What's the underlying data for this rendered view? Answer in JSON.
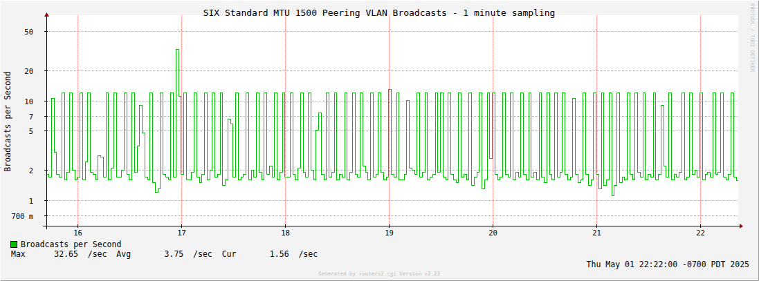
{
  "chart_data": {
    "type": "line",
    "title": "SIX Standard MTU 1500 Peering VLAN Broadcasts - 1 minute sampling",
    "y_label": "Broadcasts per Second",
    "x": [
      15.7,
      15.725,
      15.75,
      15.775,
      15.8,
      15.825,
      15.85,
      15.875,
      15.9,
      15.925,
      15.95,
      15.975,
      16,
      16.025,
      16.05,
      16.075,
      16.1,
      16.125,
      16.15,
      16.175,
      16.2,
      16.225,
      16.25,
      16.275,
      16.3,
      16.325,
      16.35,
      16.375,
      16.4,
      16.425,
      16.45,
      16.475,
      16.5,
      16.525,
      16.55,
      16.575,
      16.6,
      16.625,
      16.65,
      16.675,
      16.7,
      16.725,
      16.75,
      16.775,
      16.8,
      16.825,
      16.85,
      16.875,
      16.9,
      16.925,
      16.95,
      16.975,
      17,
      17.025,
      17.05,
      17.075,
      17.1,
      17.125,
      17.15,
      17.175,
      17.2,
      17.225,
      17.25,
      17.275,
      17.3,
      17.325,
      17.35,
      17.375,
      17.4,
      17.425,
      17.45,
      17.475,
      17.5,
      17.525,
      17.55,
      17.575,
      17.6,
      17.625,
      17.65,
      17.675,
      17.7,
      17.725,
      17.75,
      17.775,
      17.8,
      17.825,
      17.85,
      17.875,
      17.9,
      17.925,
      17.95,
      17.975,
      18,
      18.025,
      18.05,
      18.075,
      18.1,
      18.125,
      18.15,
      18.175,
      18.2,
      18.225,
      18.25,
      18.275,
      18.3,
      18.325,
      18.35,
      18.375,
      18.4,
      18.425,
      18.45,
      18.475,
      18.5,
      18.525,
      18.55,
      18.575,
      18.6,
      18.625,
      18.65,
      18.675,
      18.7,
      18.725,
      18.75,
      18.775,
      18.8,
      18.825,
      18.85,
      18.875,
      18.9,
      18.925,
      18.95,
      18.975,
      19,
      19.025,
      19.05,
      19.075,
      19.1,
      19.125,
      19.15,
      19.175,
      19.2,
      19.225,
      19.25,
      19.275,
      19.3,
      19.325,
      19.35,
      19.375,
      19.4,
      19.425,
      19.45,
      19.475,
      19.5,
      19.525,
      19.55,
      19.575,
      19.6,
      19.625,
      19.65,
      19.675,
      19.7,
      19.725,
      19.75,
      19.775,
      19.8,
      19.825,
      19.85,
      19.875,
      19.9,
      19.925,
      19.95,
      19.975,
      20,
      20.025,
      20.05,
      20.075,
      20.1,
      20.125,
      20.15,
      20.175,
      20.2,
      20.225,
      20.25,
      20.275,
      20.3,
      20.325,
      20.35,
      20.375,
      20.4,
      20.425,
      20.45,
      20.475,
      20.5,
      20.525,
      20.55,
      20.575,
      20.6,
      20.625,
      20.65,
      20.675,
      20.7,
      20.725,
      20.75,
      20.775,
      20.8,
      20.825,
      20.85,
      20.875,
      20.9,
      20.925,
      20.95,
      20.975,
      21,
      21.025,
      21.05,
      21.075,
      21.1,
      21.125,
      21.15,
      21.175,
      21.2,
      21.225,
      21.25,
      21.275,
      21.3,
      21.325,
      21.35,
      21.375,
      21.4,
      21.425,
      21.45,
      21.475,
      21.5,
      21.525,
      21.55,
      21.575,
      21.6,
      21.625,
      21.65,
      21.675,
      21.7,
      21.725,
      21.75,
      21.775,
      21.8,
      21.825,
      21.85,
      21.875,
      21.9,
      21.925,
      21.95,
      21.975,
      22,
      22.025,
      22.05,
      22.075,
      22.1,
      22.125,
      22.15,
      22.175,
      22.2,
      22.225,
      22.25,
      22.275,
      22.3,
      22.325,
      22.35
    ],
    "series": [
      {
        "name": "Broadcasts per Second",
        "color": "#00c000",
        "line_style": "step",
        "values": [
          1.8,
          1.7,
          10.5,
          3,
          1.8,
          1.7,
          12,
          1.6,
          1.9,
          12,
          2,
          1.6,
          1.7,
          12,
          1.6,
          2.4,
          12,
          1.9,
          1.8,
          1.6,
          2.8,
          2.7,
          1.7,
          12,
          1.6,
          2.1,
          12,
          1.7,
          1.7,
          2,
          12,
          1.8,
          1.6,
          12,
          1.9,
          3.5,
          9,
          4.7,
          1.7,
          1.6,
          12,
          1.5,
          1.2,
          1.3,
          12,
          1.8,
          1.7,
          1.6,
          12,
          1.7,
          32.65,
          11,
          1.8,
          12,
          1.6,
          1.6,
          1.9,
          12,
          1.7,
          1.5,
          1.8,
          12,
          1.6,
          2,
          12,
          1.7,
          1.8,
          12,
          1.4,
          1.6,
          6.5,
          5.8,
          1.7,
          12,
          1.6,
          1.7,
          1.8,
          12,
          1.6,
          2,
          1.7,
          12,
          1.9,
          1.6,
          12,
          1.8,
          2.2,
          1.7,
          12,
          1.6,
          1.9,
          12,
          1.7,
          1.7,
          12,
          1.8,
          1.6,
          2.1,
          12,
          1.9,
          1.7,
          12,
          2,
          1.6,
          5,
          7.5,
          1.8,
          1.6,
          12,
          1.7,
          1.9,
          12,
          1.6,
          1.8,
          1.7,
          12,
          1.6,
          1.9,
          12,
          1.8,
          1.7,
          12,
          2.2,
          1.9,
          1.6,
          12,
          1.7,
          1.8,
          12,
          1.9,
          1.6,
          1.7,
          13,
          1.8,
          1.7,
          12,
          1.6,
          1.6,
          1.8,
          10,
          2.1,
          2,
          1.8,
          12,
          1.7,
          1.9,
          12,
          1.6,
          1.7,
          1.8,
          12,
          1.9,
          12,
          1.7,
          1.6,
          12,
          1.8,
          1.6,
          1.5,
          12,
          1.7,
          1.8,
          1.6,
          12,
          1.4,
          1.7,
          1.9,
          12,
          1.3,
          1.6,
          12,
          2.6,
          12,
          1.8,
          1.6,
          1.7,
          12,
          1.8,
          1.7,
          12,
          1.6,
          1.9,
          1.7,
          12,
          1.8,
          1.6,
          12,
          1.7,
          1.9,
          1.6,
          12,
          1.7,
          1.5,
          12,
          1.8,
          1.6,
          12,
          1.7,
          1.9,
          12,
          1.8,
          1.6,
          1.7,
          10.5,
          1.8,
          1.5,
          1.6,
          12,
          1.8,
          1.4,
          1.6,
          12,
          1.8,
          1.3,
          12,
          1.4,
          1.6,
          12,
          1.1,
          1.4,
          12,
          1.5,
          1.7,
          1.6,
          12,
          1.8,
          1.6,
          12,
          1.9,
          1.7,
          12,
          1.6,
          1.8,
          1.7,
          12,
          1.6,
          1.8,
          9,
          2.2,
          1.7,
          12,
          1.6,
          1.8,
          1.7,
          1.9,
          12,
          1.6,
          1.7,
          12,
          1.8,
          2,
          1.7,
          12,
          1.6,
          1.8,
          1.9,
          1.7,
          12,
          1.8,
          1.9,
          12,
          1.7,
          1.6,
          1.8,
          12,
          1.7,
          1.56
        ]
      }
    ],
    "xlim": [
      15.7,
      22.37
    ],
    "ylim": [
      0.55,
      72
    ],
    "xticks": [
      16,
      17,
      18,
      19,
      20,
      21,
      22
    ],
    "yticks": [
      50,
      20,
      10,
      7,
      5,
      2,
      1,
      {
        "value": 0.7,
        "label": "700 m"
      }
    ],
    "log": "y",
    "grid": true,
    "legend": "bottom-left",
    "annotations": [
      "Max      32.65  /sec  Avg       3.75  /sec  Cur       1.56  /sec",
      "Thu May 01 22:22:00 -0700 PDT 2025",
      "Generated by routers2.cgi Version v2.23",
      "RRDTOOL / TOBI OETIKER"
    ]
  }
}
